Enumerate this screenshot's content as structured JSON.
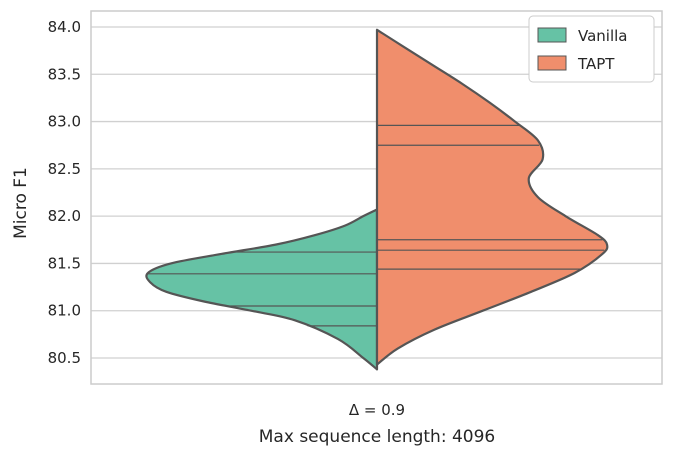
{
  "chart_data": {
    "type": "violin",
    "split": true,
    "ylabel": "Micro F1",
    "ylim": [
      80.5,
      84.0
    ],
    "y_ticks": [
      "80.5",
      "81.0",
      "81.5",
      "82.0",
      "82.5",
      "83.0",
      "83.5",
      "84.0"
    ],
    "y_tick_values": [
      80.5,
      81.0,
      81.5,
      82.0,
      82.5,
      83.0,
      83.5,
      84.0
    ],
    "grid": true,
    "legend_position": "top-right",
    "x_tick_lines": [
      "Δ = 0.9",
      "Max sequence length: 4096"
    ],
    "series": [
      {
        "name": "Vanilla",
        "side": "left",
        "color": "#66c2a5",
        "range": [
          80.38,
          82.07
        ],
        "quartiles": [
          80.84,
          81.05,
          81.39,
          81.62
        ],
        "density": [
          [
            80.38,
            0.0
          ],
          [
            80.5,
            0.06
          ],
          [
            80.7,
            0.17
          ],
          [
            80.9,
            0.36
          ],
          [
            81.0,
            0.55
          ],
          [
            81.1,
            0.76
          ],
          [
            81.2,
            0.92
          ],
          [
            81.3,
            0.99
          ],
          [
            81.4,
            1.0
          ],
          [
            81.5,
            0.9
          ],
          [
            81.6,
            0.68
          ],
          [
            81.7,
            0.44
          ],
          [
            81.8,
            0.27
          ],
          [
            81.9,
            0.14
          ],
          [
            82.0,
            0.06
          ],
          [
            82.07,
            0.0
          ]
        ]
      },
      {
        "name": "TAPT",
        "side": "right",
        "color": "#f08e6c",
        "range": [
          80.43,
          83.97
        ],
        "quartiles": [
          81.44,
          81.64,
          81.75,
          82.75,
          82.96
        ],
        "density": [
          [
            80.43,
            0.0
          ],
          [
            80.6,
            0.09
          ],
          [
            80.8,
            0.25
          ],
          [
            81.0,
            0.46
          ],
          [
            81.2,
            0.67
          ],
          [
            81.4,
            0.86
          ],
          [
            81.6,
            0.98
          ],
          [
            81.7,
            1.0
          ],
          [
            81.8,
            0.96
          ],
          [
            82.0,
            0.82
          ],
          [
            82.2,
            0.7
          ],
          [
            82.4,
            0.66
          ],
          [
            82.6,
            0.72
          ],
          [
            82.8,
            0.7
          ],
          [
            83.0,
            0.6
          ],
          [
            83.2,
            0.49
          ],
          [
            83.4,
            0.37
          ],
          [
            83.6,
            0.24
          ],
          [
            83.8,
            0.11
          ],
          [
            83.97,
            0.0
          ]
        ]
      }
    ]
  },
  "colors": {
    "outline": "#555555",
    "grid": "#d0d0d0",
    "spine": "#cccccc"
  }
}
